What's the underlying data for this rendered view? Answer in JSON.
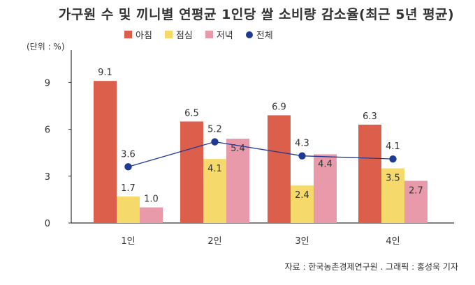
{
  "title": "가구원 수 및 끼니별 연평균 1인당 쌀 소비량 감소율(최근 5년 평균)",
  "unit_label": "(단위 : %)",
  "source": "자료 : 한국농촌경제연구원 . 그래픽 : 홍성욱 기자",
  "colors": {
    "breakfast": "#dc5f4c",
    "lunch": "#f5d96a",
    "dinner": "#e89aab",
    "total": "#1f3a93",
    "axis": "#333333"
  },
  "chart_data": {
    "type": "bar",
    "categories": [
      "1인",
      "2인",
      "3인",
      "4인"
    ],
    "series": [
      {
        "name": "아침",
        "kind": "bar",
        "values": [
          9.1,
          6.5,
          6.9,
          6.3
        ],
        "labels": [
          "9.1",
          "6.5",
          "6.9",
          "6.3"
        ]
      },
      {
        "name": "점심",
        "kind": "bar",
        "values": [
          1.7,
          4.1,
          2.4,
          3.5
        ],
        "labels": [
          "1.7",
          "4.1",
          "2.4",
          "3.5"
        ]
      },
      {
        "name": "저녁",
        "kind": "bar",
        "values": [
          1.0,
          5.4,
          4.4,
          2.7
        ],
        "labels": [
          "1.0",
          "5.4",
          "4.4",
          "2.7"
        ]
      },
      {
        "name": "전체",
        "kind": "line",
        "values": [
          3.6,
          5.2,
          4.3,
          4.1
        ],
        "labels": [
          "3.6",
          "5.2",
          "4.3",
          "4.1"
        ]
      }
    ],
    "yticks": [
      "0",
      "3",
      "6",
      "9"
    ],
    "ytick_values": [
      0,
      3,
      6,
      9
    ],
    "ylim": [
      0,
      10
    ],
    "xlabel": "",
    "ylabel": "",
    "grid": false,
    "legend_position": "top"
  }
}
